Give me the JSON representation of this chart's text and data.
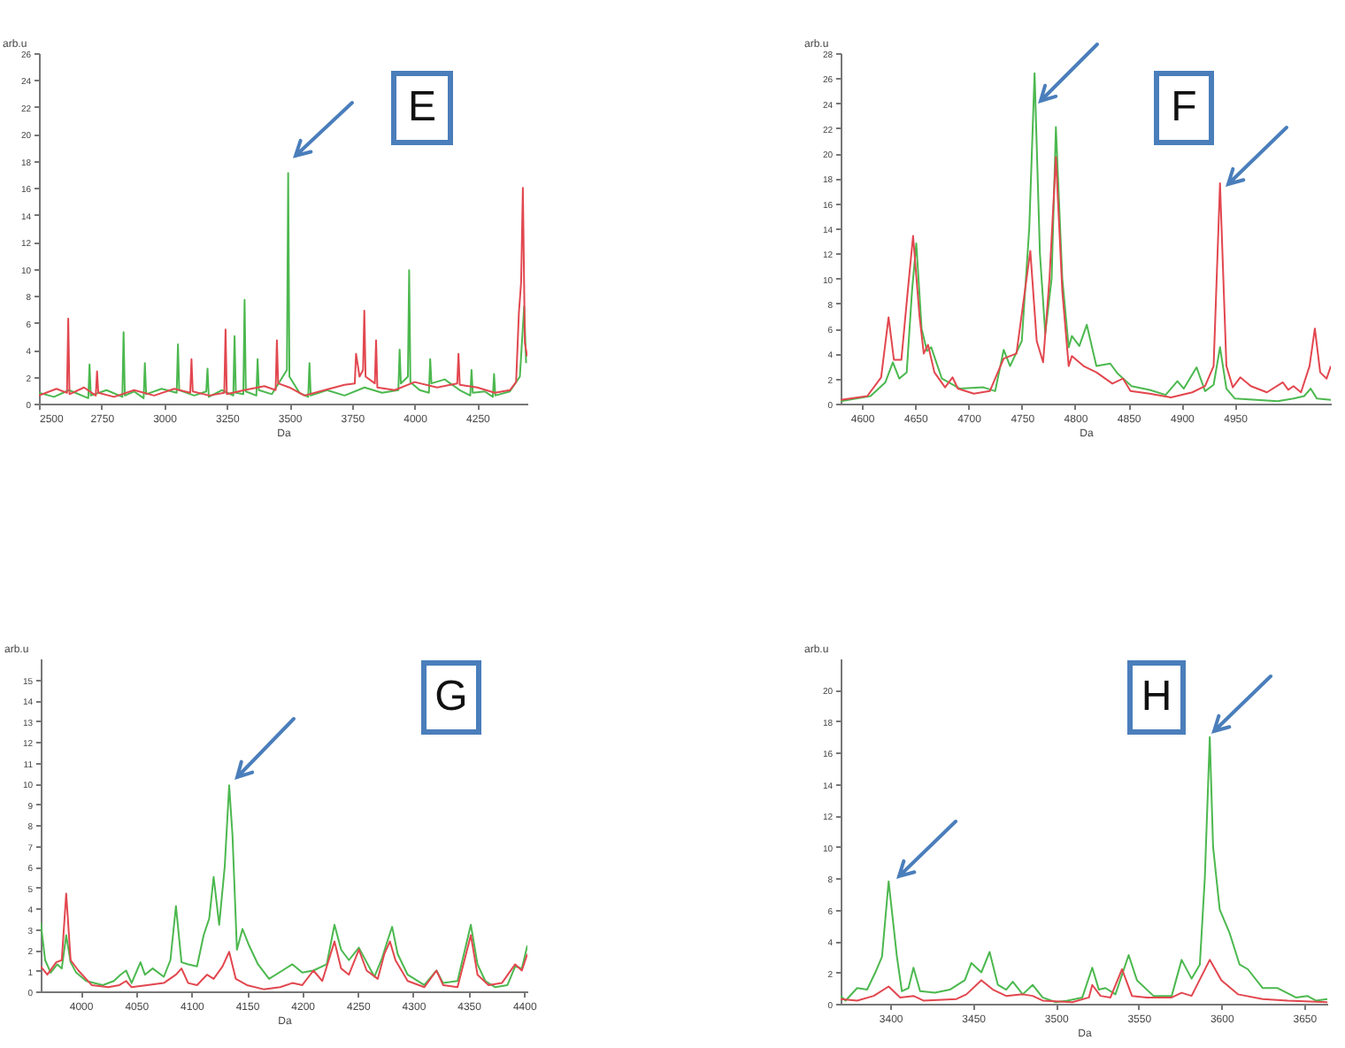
{
  "chart_data": [
    {
      "type": "line",
      "xlabel": "Da",
      "ylabel": "arb.u",
      "annotations": [
        "E"
      ],
      "xlim": [
        2500,
        4450
      ],
      "ylim": [
        0,
        26
      ],
      "xticks": [
        2500,
        2750,
        3000,
        3250,
        3500,
        3750,
        4000,
        4250
      ],
      "yticks": [
        0,
        2,
        4,
        6,
        8,
        10,
        12,
        14,
        16,
        18,
        20,
        22,
        24,
        26
      ],
      "series": [
        {
          "color": "#4cb84f",
          "x": [
            2500,
            2560,
            2620,
            2697,
            2702,
            2707,
            2770,
            2833,
            2838,
            2843,
            2880,
            2918,
            2923,
            2928,
            2990,
            3050,
            3055,
            3060,
            3120,
            3168,
            3173,
            3178,
            3230,
            3276,
            3281,
            3286,
            3316,
            3321,
            3326,
            3368,
            3373,
            3378,
            3430,
            3490,
            3495,
            3500,
            3540,
            3575,
            3580,
            3585,
            3650,
            3720,
            3800,
            3870,
            3935,
            3940,
            3945,
            3973,
            3978,
            3983,
            4020,
            4057,
            4062,
            4067,
            4120,
            4180,
            4222,
            4227,
            4232,
            4280,
            4312,
            4317,
            4322,
            4380,
            4420,
            4437,
            4445
          ],
          "values": [
            0.8,
            0.5,
            1.0,
            0.4,
            2.9,
            0.6,
            1.0,
            0.5,
            5.3,
            0.6,
            0.9,
            0.4,
            3.0,
            0.7,
            1.1,
            0.8,
            4.4,
            1.0,
            0.6,
            0.9,
            2.6,
            0.5,
            1.0,
            0.6,
            5.0,
            0.8,
            0.7,
            7.7,
            0.9,
            0.6,
            3.3,
            1.0,
            0.7,
            2.5,
            17.1,
            2.0,
            0.8,
            0.5,
            3.0,
            0.6,
            1.0,
            0.6,
            1.2,
            0.8,
            1.0,
            4.0,
            1.5,
            2.0,
            9.9,
            1.6,
            1.0,
            0.8,
            3.3,
            1.5,
            1.8,
            1.0,
            0.6,
            2.5,
            0.8,
            0.9,
            0.5,
            2.2,
            0.6,
            0.9,
            2.0,
            7.2,
            3.0
          ]
        },
        {
          "color": "#e2474f",
          "x": [
            2500,
            2570,
            2612,
            2617,
            2622,
            2680,
            2727,
            2732,
            2737,
            2800,
            2880,
            2960,
            3040,
            3104,
            3109,
            3114,
            3180,
            3240,
            3245,
            3250,
            3320,
            3400,
            3445,
            3450,
            3455,
            3500,
            3560,
            3640,
            3720,
            3761,
            3766,
            3780,
            3794,
            3799,
            3804,
            3841,
            3846,
            3851,
            3920,
            4000,
            4090,
            4170,
            4175,
            4180,
            4250,
            4320,
            4380,
            4405,
            4416,
            4425,
            4432,
            4440,
            4449
          ],
          "values": [
            0.6,
            1.1,
            0.8,
            6.3,
            0.7,
            1.2,
            0.6,
            2.4,
            0.8,
            0.5,
            1.0,
            0.6,
            1.1,
            0.8,
            3.3,
            0.9,
            0.6,
            0.8,
            5.5,
            0.7,
            1.0,
            1.3,
            1.0,
            4.7,
            1.5,
            1.2,
            0.6,
            1.0,
            1.4,
            1.5,
            3.7,
            2.0,
            2.5,
            6.9,
            2.0,
            1.5,
            4.7,
            1.2,
            1.0,
            1.6,
            1.2,
            1.5,
            3.7,
            1.4,
            1.2,
            0.8,
            1.0,
            1.6,
            6.7,
            9.0,
            16.0,
            4.5,
            3.5
          ]
        }
      ]
    },
    {
      "type": "line",
      "xlabel": "Da",
      "ylabel": "arb.u",
      "annotations": [
        "F"
      ],
      "xlim": [
        4580,
        5040
      ],
      "ylim": [
        0,
        28
      ],
      "xticks": [
        4600,
        4650,
        4700,
        4750,
        4800,
        4850,
        4900,
        4950
      ],
      "yticks": [
        0,
        2,
        4,
        6,
        8,
        10,
        12,
        14,
        16,
        18,
        20,
        22,
        24,
        26,
        28
      ],
      "series": [
        {
          "color": "#4cb84f",
          "x": [
            4580,
            4608,
            4622,
            4629,
            4635,
            4642,
            4647,
            4651,
            4656,
            4661,
            4665,
            4675,
            4692,
            4714,
            4725,
            4733,
            4739,
            4750,
            4757,
            4762,
            4767,
            4772,
            4778,
            4782,
            4788,
            4794,
            4797,
            4804,
            4811,
            4820,
            4833,
            4840,
            4853,
            4870,
            4885,
            4896,
            4902,
            4914,
            4922,
            4930,
            4936,
            4942,
            4950,
            4990,
            5005,
            5015,
            5021,
            5027,
            5040
          ],
          "values": [
            0.2,
            0.6,
            1.7,
            3.3,
            2.0,
            2.5,
            9.0,
            12.8,
            6.0,
            4.2,
            4.5,
            2.0,
            1.2,
            1.3,
            1.0,
            4.3,
            3.0,
            5.0,
            14.0,
            26.4,
            12.0,
            5.6,
            10.0,
            22.1,
            10.0,
            4.5,
            5.4,
            4.6,
            6.3,
            3.0,
            3.2,
            2.4,
            1.4,
            1.1,
            0.7,
            1.8,
            1.2,
            2.9,
            1.0,
            1.5,
            4.5,
            1.2,
            0.4,
            0.2,
            0.4,
            0.6,
            1.2,
            0.4,
            0.3
          ]
        },
        {
          "color": "#e2474f",
          "x": [
            4580,
            4605,
            4618,
            4625,
            4630,
            4637,
            4643,
            4648,
            4654,
            4658,
            4662,
            4668,
            4678,
            4685,
            4690,
            4705,
            4720,
            4733,
            4745,
            4758,
            4764,
            4770,
            4776,
            4782,
            4788,
            4794,
            4797,
            4808,
            4820,
            4835,
            4845,
            4852,
            4870,
            4890,
            4910,
            4922,
            4930,
            4936,
            4942,
            4948,
            4955,
            4965,
            4980,
            4995,
            5000,
            5005,
            5012,
            5020,
            5025,
            5030,
            5036,
            5040
          ],
          "values": [
            0.3,
            0.6,
            2.1,
            6.9,
            3.5,
            3.5,
            9.0,
            13.4,
            7.0,
            4.0,
            4.7,
            2.5,
            1.3,
            2.1,
            1.2,
            0.8,
            1.0,
            3.6,
            4.0,
            12.2,
            5.0,
            3.3,
            10.0,
            19.7,
            9.0,
            3.0,
            3.8,
            3.0,
            2.5,
            1.6,
            2.0,
            1.0,
            0.8,
            0.5,
            0.9,
            1.4,
            3.0,
            17.6,
            3.0,
            1.3,
            2.1,
            1.4,
            0.9,
            1.7,
            1.1,
            1.4,
            0.9,
            3.0,
            6.0,
            2.5,
            2.0,
            3.0
          ]
        }
      ]
    },
    {
      "type": "line",
      "xlabel": "Da",
      "ylabel": "arb.u",
      "annotations": [
        "G"
      ],
      "xlim": [
        3964,
        4403
      ],
      "ylim": [
        0,
        16
      ],
      "xticks": [
        4000,
        4050,
        4100,
        4150,
        4200,
        4250,
        4300,
        4350,
        4400
      ],
      "yticks": [
        0,
        1,
        2,
        3,
        4,
        5,
        6,
        7,
        8,
        9,
        10,
        11,
        12,
        13,
        14,
        15
      ],
      "series": [
        {
          "color": "#4cb84f",
          "x": [
            3964,
            3968,
            3973,
            3979,
            3983,
            3987,
            3991,
            3996,
            4005,
            4020,
            4030,
            4036,
            4041,
            4046,
            4054,
            4058,
            4065,
            4075,
            4081,
            4086,
            4091,
            4097,
            4105,
            4111,
            4116,
            4120,
            4125,
            4130,
            4134,
            4137,
            4141,
            4146,
            4152,
            4160,
            4170,
            4182,
            4191,
            4200,
            4210,
            4222,
            4229,
            4235,
            4242,
            4251,
            4258,
            4265,
            4272,
            4276,
            4281,
            4286,
            4295,
            4310,
            4321,
            4327,
            4340,
            4352,
            4358,
            4365,
            4374,
            4385,
            4392,
            4398,
            4403
          ],
          "values": [
            3.3,
            1.5,
            0.9,
            1.3,
            1.1,
            2.7,
            1.4,
            0.9,
            0.5,
            0.3,
            0.5,
            0.8,
            1.0,
            0.4,
            1.4,
            0.8,
            1.1,
            0.7,
            1.5,
            4.1,
            1.4,
            1.3,
            1.2,
            2.7,
            3.5,
            5.5,
            3.2,
            6.0,
            9.9,
            7.5,
            2.0,
            3.0,
            2.2,
            1.3,
            0.6,
            1.0,
            1.3,
            0.9,
            1.0,
            1.3,
            3.2,
            2.0,
            1.5,
            2.1,
            1.4,
            0.7,
            1.6,
            2.3,
            3.1,
            1.8,
            0.8,
            0.3,
            1.0,
            0.4,
            0.5,
            3.2,
            1.3,
            0.5,
            0.2,
            0.3,
            1.2,
            1.1,
            2.2
          ]
        },
        {
          "color": "#e2474f",
          "x": [
            3964,
            3970,
            3978,
            3983,
            3987,
            3991,
            3998,
            4010,
            4025,
            4035,
            4041,
            4046,
            4060,
            4075,
            4086,
            4091,
            4097,
            4105,
            4114,
            4120,
            4128,
            4134,
            4140,
            4150,
            4165,
            4180,
            4191,
            4200,
            4210,
            4218,
            4229,
            4235,
            4242,
            4251,
            4258,
            4268,
            4274,
            4279,
            4284,
            4295,
            4310,
            4321,
            4327,
            4340,
            4352,
            4358,
            4368,
            4380,
            4392,
            4398,
            4403
          ],
          "values": [
            1.2,
            0.8,
            1.4,
            1.5,
            4.7,
            1.5,
            1.0,
            0.3,
            0.2,
            0.3,
            0.5,
            0.2,
            0.3,
            0.4,
            0.8,
            1.1,
            0.4,
            0.3,
            0.8,
            0.6,
            1.2,
            1.9,
            0.6,
            0.3,
            0.1,
            0.2,
            0.4,
            0.3,
            1.0,
            0.5,
            2.4,
            1.1,
            0.8,
            2.0,
            1.0,
            0.6,
            1.8,
            2.4,
            1.5,
            0.5,
            0.2,
            1.0,
            0.3,
            0.2,
            2.7,
            0.8,
            0.3,
            0.4,
            1.3,
            1.0,
            1.8
          ]
        }
      ]
    },
    {
      "type": "line",
      "xlabel": "Da",
      "ylabel": "arb.u",
      "annotations": [
        "H"
      ],
      "xlim": [
        3370,
        3664
      ],
      "ylim": [
        0,
        22
      ],
      "xticks": [
        3400,
        3450,
        3500,
        3550,
        3600,
        3650
      ],
      "yticks": [
        0,
        2,
        4,
        6,
        8,
        10,
        12,
        14,
        16,
        18,
        20
      ],
      "series": [
        {
          "color": "#4cb84f",
          "x": [
            3370,
            3373,
            3380,
            3386,
            3391,
            3395,
            3399,
            3404,
            3407,
            3411,
            3414,
            3418,
            3427,
            3436,
            3445,
            3449,
            3455,
            3460,
            3465,
            3470,
            3474,
            3480,
            3486,
            3492,
            3500,
            3507,
            3516,
            3522,
            3526,
            3530,
            3536,
            3544,
            3549,
            3559,
            3570,
            3576,
            3582,
            3587,
            3590,
            3593,
            3595,
            3599,
            3605,
            3611,
            3616,
            3625,
            3634,
            3645,
            3652,
            3657,
            3664
          ],
          "values": [
            0.5,
            0.2,
            1.0,
            0.9,
            2.0,
            3.0,
            7.8,
            3.0,
            0.8,
            1.0,
            2.3,
            0.8,
            0.7,
            0.9,
            1.5,
            2.6,
            2.0,
            3.3,
            1.2,
            0.9,
            1.4,
            0.6,
            1.2,
            0.4,
            0.1,
            0.2,
            0.4,
            2.3,
            0.9,
            1.0,
            0.6,
            3.1,
            1.5,
            0.5,
            0.5,
            2.8,
            1.6,
            2.5,
            8.0,
            17.0,
            10.0,
            6.0,
            4.5,
            2.5,
            2.2,
            1.0,
            1.0,
            0.4,
            0.5,
            0.2,
            0.3
          ]
        },
        {
          "color": "#e2474f",
          "x": [
            3370,
            3380,
            3390,
            3399,
            3406,
            3414,
            3420,
            3440,
            3446,
            3455,
            3462,
            3470,
            3480,
            3486,
            3492,
            3510,
            3520,
            3522,
            3527,
            3533,
            3540,
            3546,
            3555,
            3570,
            3576,
            3582,
            3593,
            3600,
            3610,
            3625,
            3640,
            3664
          ],
          "values": [
            0.3,
            0.2,
            0.5,
            1.1,
            0.4,
            0.5,
            0.2,
            0.3,
            0.6,
            1.5,
            0.9,
            0.5,
            0.6,
            0.5,
            0.2,
            0.1,
            0.4,
            1.2,
            0.5,
            0.4,
            2.2,
            0.5,
            0.4,
            0.4,
            0.7,
            0.5,
            2.8,
            1.5,
            0.6,
            0.3,
            0.2,
            0.1
          ]
        }
      ]
    }
  ]
}
